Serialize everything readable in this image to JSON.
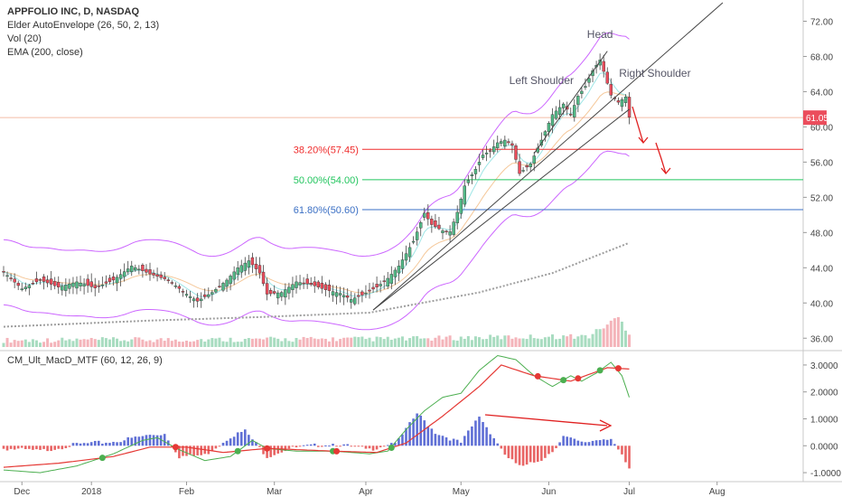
{
  "legend": {
    "title": "APPFOLIO INC, D, NASDAQ",
    "line2": "Elder AutoEnvelope (26, 50, 2, 13)",
    "line3": "Vol (20)",
    "line4": "EMA (200, close)"
  },
  "indicator_title": "CM_Ult_MacD_MTF (60, 12, 26, 9)",
  "annotations": {
    "head": "Head",
    "left_shoulder": "Left Shoulder",
    "right_shoulder": "Right Shoulder",
    "fib_382": "38.20%(57.45)",
    "fib_500": "50.00%(54.00)",
    "fib_618": "61.80%(50.60)"
  },
  "price_axis_labels": [
    "72.00",
    "68.00",
    "64.00",
    "60.00",
    "56.00",
    "52.00",
    "48.00",
    "44.00",
    "40.00",
    "36.00"
  ],
  "current_price_label": "61.05",
  "macd_axis_labels": [
    "3.0000",
    "2.0000",
    "1.0000",
    "0.0000",
    "-1.0000"
  ],
  "x_axis_labels": [
    "Dec",
    "2018",
    "Feb",
    "Mar",
    "Apr",
    "May",
    "Jun",
    "Jul",
    "Aug"
  ],
  "colors": {
    "up": "#53b987",
    "down": "#eb4d5c",
    "envelope": "#cc66ff",
    "ema": "#9e9e9e",
    "fib_382": "#ef2c2c",
    "fib_500": "#22c55e",
    "fib_618": "#3a6fc4",
    "annotation_arrow": "#e02020",
    "macd_up": "#2a3fc7",
    "macd_down": "#e03030"
  },
  "chart_data": [
    {
      "type": "candlestick",
      "title": "APPFOLIO INC, D, NASDAQ",
      "ylim": [
        35,
        74
      ],
      "x_ticks": [
        "Dec",
        "2018",
        "Feb",
        "Mar",
        "Apr",
        "May",
        "Jun",
        "Jul",
        "Aug"
      ],
      "levels": [
        {
          "name": "38.20%(57.45)",
          "value": 57.45
        },
        {
          "name": "50.00%(54.00)",
          "value": 54.0
        },
        {
          "name": "61.80%(50.60)",
          "value": 50.6
        }
      ],
      "last_close": 61.05,
      "close_anchors": [
        [
          0,
          43.5
        ],
        [
          5,
          41.6
        ],
        [
          10,
          42.6
        ],
        [
          15,
          41.8
        ],
        [
          20,
          42.4
        ],
        [
          25,
          41.7
        ],
        [
          30,
          42.6
        ],
        [
          35,
          44.2
        ],
        [
          40,
          43.3
        ],
        [
          45,
          42.6
        ],
        [
          50,
          41.0
        ],
        [
          53,
          40.2
        ],
        [
          57,
          41.2
        ],
        [
          61,
          42.6
        ],
        [
          64,
          44.0
        ],
        [
          67,
          44.8
        ],
        [
          70,
          43.4
        ],
        [
          72,
          41.0
        ],
        [
          76,
          41.2
        ],
        [
          80,
          42.4
        ],
        [
          84,
          42.1
        ],
        [
          88,
          41.5
        ],
        [
          92,
          41.1
        ],
        [
          95,
          40.4
        ],
        [
          98,
          40.9
        ],
        [
          102,
          41.8
        ],
        [
          105,
          42.8
        ],
        [
          108,
          44.2
        ],
        [
          112,
          47.0
        ],
        [
          115,
          50.2
        ],
        [
          117,
          48.9
        ],
        [
          120,
          48.2
        ],
        [
          122,
          48.1
        ],
        [
          124,
          50.3
        ],
        [
          126,
          53.3
        ],
        [
          129,
          55.2
        ],
        [
          131,
          56.8
        ],
        [
          133,
          57.3
        ],
        [
          135,
          58.2
        ],
        [
          137,
          58.5
        ],
        [
          139,
          57.9
        ],
        [
          141,
          54.7
        ],
        [
          144,
          55.8
        ],
        [
          147,
          58.5
        ],
        [
          150,
          61.4
        ],
        [
          153,
          62.6
        ],
        [
          155,
          61.4
        ],
        [
          157,
          63.5
        ],
        [
          159,
          64.6
        ],
        [
          161,
          66.4
        ],
        [
          163,
          67.6
        ],
        [
          164,
          66.3
        ],
        [
          166,
          63.6
        ],
        [
          168,
          62.8
        ],
        [
          170,
          63.4
        ],
        [
          171,
          61.1
        ]
      ],
      "ema200_anchors": [
        [
          0,
          37.3
        ],
        [
          40,
          38.0
        ],
        [
          70,
          38.4
        ],
        [
          100,
          38.9
        ],
        [
          130,
          41.2
        ],
        [
          150,
          43.4
        ],
        [
          172,
          47.0
        ]
      ],
      "volume_anchors": [
        [
          0,
          3
        ],
        [
          110,
          4
        ],
        [
          130,
          5
        ],
        [
          160,
          6
        ],
        [
          168,
          20
        ],
        [
          172,
          4
        ]
      ]
    },
    {
      "type": "line",
      "title": "CM_Ult_MacD_MTF (60, 12, 26, 9)",
      "ylim": [
        -1.3,
        3.4
      ],
      "macd_anchors": [
        [
          0,
          -0.9
        ],
        [
          10,
          -1.0
        ],
        [
          20,
          -0.75
        ],
        [
          30,
          -0.3
        ],
        [
          38,
          0.2
        ],
        [
          42,
          0.3
        ],
        [
          48,
          -0.15
        ],
        [
          55,
          -0.55
        ],
        [
          62,
          -0.4
        ],
        [
          68,
          0.2
        ],
        [
          72,
          -0.1
        ],
        [
          80,
          -0.2
        ],
        [
          90,
          -0.2
        ],
        [
          100,
          -0.3
        ],
        [
          105,
          -0.2
        ],
        [
          110,
          0.6
        ],
        [
          115,
          1.3
        ],
        [
          120,
          1.8
        ],
        [
          125,
          1.95
        ],
        [
          130,
          2.8
        ],
        [
          135,
          3.35
        ],
        [
          140,
          3.2
        ],
        [
          145,
          2.6
        ],
        [
          150,
          2.2
        ],
        [
          155,
          2.6
        ],
        [
          158,
          2.4
        ],
        [
          162,
          2.7
        ],
        [
          166,
          3.1
        ],
        [
          169,
          2.6
        ],
        [
          171,
          1.8
        ]
      ],
      "signal_anchors": [
        [
          0,
          -0.8
        ],
        [
          15,
          -0.65
        ],
        [
          30,
          -0.4
        ],
        [
          40,
          -0.05
        ],
        [
          50,
          -0.05
        ],
        [
          60,
          -0.25
        ],
        [
          72,
          -0.1
        ],
        [
          90,
          -0.2
        ],
        [
          102,
          -0.25
        ],
        [
          110,
          0.1
        ],
        [
          120,
          1.1
        ],
        [
          130,
          2.2
        ],
        [
          136,
          3.0
        ],
        [
          145,
          2.6
        ],
        [
          155,
          2.4
        ],
        [
          165,
          2.9
        ],
        [
          171,
          2.85
        ]
      ],
      "histogram_anchors": [
        [
          0,
          -0.1
        ],
        [
          10,
          -0.2
        ],
        [
          20,
          0.05
        ],
        [
          30,
          0.15
        ],
        [
          40,
          0.4
        ],
        [
          44,
          0.45
        ],
        [
          48,
          -0.4
        ],
        [
          55,
          -0.35
        ],
        [
          62,
          0.35
        ],
        [
          66,
          0.55
        ],
        [
          72,
          -0.4
        ],
        [
          78,
          -0.1
        ],
        [
          90,
          0.08
        ],
        [
          100,
          -0.15
        ],
        [
          108,
          0.2
        ],
        [
          113,
          1.2
        ],
        [
          118,
          0.5
        ],
        [
          125,
          0.1
        ],
        [
          130,
          1.1
        ],
        [
          134,
          0.3
        ],
        [
          138,
          -0.5
        ],
        [
          142,
          -0.8
        ],
        [
          147,
          -0.5
        ],
        [
          150,
          -0.2
        ],
        [
          153,
          0.35
        ],
        [
          158,
          0.1
        ],
        [
          163,
          0.25
        ],
        [
          166,
          0.3
        ],
        [
          169,
          -0.4
        ],
        [
          171,
          -0.9
        ]
      ]
    }
  ]
}
